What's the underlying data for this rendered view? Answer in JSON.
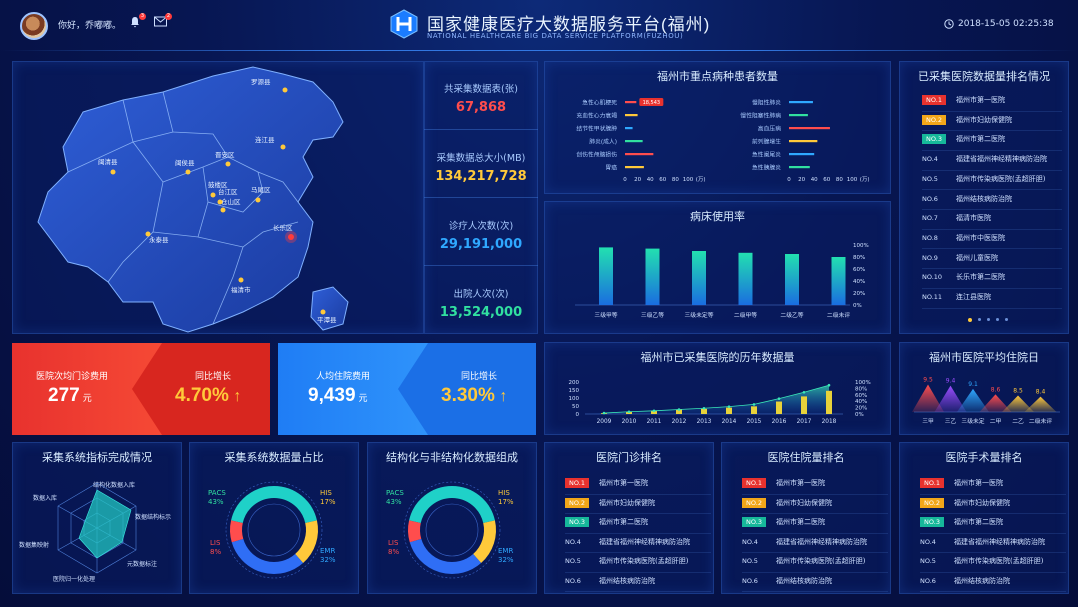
{
  "header": {
    "greeting": "你好，乔嘟嘟。",
    "title_cn": "国家健康医疗大数据服务平台(福州)",
    "title_en": "NATIONAL HEALTHCARE BIG DATA SERVICE PLATFORM(FUZHOU)",
    "datetime": "2018-15-05 02:25:38",
    "bell_count": "3",
    "mail_count": "2"
  },
  "map": {
    "districts": [
      {
        "label": "罗源县"
      },
      {
        "label": "连江县"
      },
      {
        "label": "闽清县"
      },
      {
        "label": "闽侯县"
      },
      {
        "label": "晋安区"
      },
      {
        "label": "鼓楼区"
      },
      {
        "label": "台江区"
      },
      {
        "label": "仓山区"
      },
      {
        "label": "马尾区"
      },
      {
        "label": "长乐区"
      },
      {
        "label": "永泰县"
      },
      {
        "label": "福清市"
      },
      {
        "label": "平潭县"
      }
    ]
  },
  "stats": [
    {
      "label": "共采集数据表(张)",
      "value": "67,868",
      "color": "#ff4d4d"
    },
    {
      "label": "采集数据总大小(MB)",
      "value": "134,217,728",
      "color": "#ffc93a"
    },
    {
      "label": "诊疗人次数(次)",
      "value": "29,191,000",
      "color": "#2fa8ff"
    },
    {
      "label": "出院人次(次)",
      "value": "13,524,000",
      "color": "#31e0a0"
    }
  ],
  "disease": {
    "title": "福州市重点病种患者数量",
    "left": [
      {
        "name": "急性心肌梗死",
        "value": 18,
        "color": "#ff4d4d",
        "tag": "18,543"
      },
      {
        "name": "充血性心力衰竭",
        "value": 20,
        "color": "#ffc93a"
      },
      {
        "name": "结节性甲状腺肿",
        "value": 12,
        "color": "#2fa8ff"
      },
      {
        "name": "肺炎(成人)",
        "value": 28,
        "color": "#31e0a0"
      },
      {
        "name": "创伤性颅脑损伤",
        "value": 45,
        "color": "#ff4d4d"
      },
      {
        "name": "胃癌",
        "value": 30,
        "color": "#ffc93a"
      }
    ],
    "right": [
      {
        "name": "慢阻性肺炎",
        "value": 38,
        "color": "#2fa8ff"
      },
      {
        "name": "慢性阻塞性肺病",
        "value": 30,
        "color": "#31e0a0"
      },
      {
        "name": "高血压病",
        "value": 65,
        "color": "#ff4d4d"
      },
      {
        "name": "前列腺增生",
        "value": 45,
        "color": "#ffc93a"
      },
      {
        "name": "急性阑尾炎",
        "value": 40,
        "color": "#2fa8ff"
      },
      {
        "name": "急性胰腺炎",
        "value": 33,
        "color": "#31e0a0"
      }
    ],
    "ticks": [
      "0",
      "20",
      "40",
      "60",
      "80",
      "100",
      "(万)"
    ]
  },
  "bed": {
    "title": "病床使用率",
    "yticks": [
      "100%",
      "80%",
      "60%",
      "40%",
      "20%",
      "0%"
    ]
  },
  "hospital_rank": {
    "title": "已采集医院数据量排名情况",
    "rows": [
      {
        "no": "NO.1",
        "name": "福州市第一医院"
      },
      {
        "no": "NO.2",
        "name": "福州市妇幼保健院"
      },
      {
        "no": "NO.3",
        "name": "福州市第二医院"
      },
      {
        "no": "NO.4",
        "name": "福建省福州神经精神病防治院"
      },
      {
        "no": "NO.5",
        "name": "福州市传染病医院(孟超肝胆)"
      },
      {
        "no": "NO.6",
        "name": "福州结核病防治院"
      },
      {
        "no": "NO.7",
        "name": "福清市医院"
      },
      {
        "no": "NO.8",
        "name": "福州市中医医院"
      },
      {
        "no": "NO.9",
        "name": "福州儿童医院"
      },
      {
        "no": "NO.10",
        "name": "长乐市第二医院"
      },
      {
        "no": "NO.11",
        "name": "连江县医院"
      }
    ]
  },
  "kpi": {
    "outpatient_label": "医院次均门诊费用",
    "outpatient_value": "277",
    "outpatient_unit": "元",
    "outpatient_growth_label": "同比增长",
    "outpatient_growth": "4.70%",
    "inpatient_label": "人均住院费用",
    "inpatient_value": "9,439",
    "inpatient_unit": "元",
    "inpatient_growth_label": "同比增长",
    "inpatient_growth": "3.30%"
  },
  "history": {
    "title": "福州市已采集医院的历年数据量",
    "left_ticks": [
      "200",
      "150",
      "100",
      "50",
      "0"
    ],
    "right_ticks": [
      "100%",
      "80%",
      "60%",
      "40%",
      "20%",
      "0%"
    ]
  },
  "stay": {
    "title": "福州市医院平均住院日",
    "values_text": [
      "9.5",
      "9.4",
      "9.1",
      "8.6",
      "8.5",
      "8.4"
    ]
  },
  "completion": {
    "title": "采集系统指标完成情况",
    "axes": [
      "结构化数据入库",
      "数据结构标示",
      "元数据标注",
      "医院归一化处理",
      "数据集映射",
      "数据入库"
    ]
  },
  "ratio": {
    "title": "采集系统数据量占比",
    "pacs": "PACS",
    "pacs_pct": "43%",
    "his": "HIS",
    "his_pct": "17%",
    "lis": "LIS",
    "lis_pct": "8%",
    "emr": "EMR",
    "emr_pct": "32%"
  },
  "structured": {
    "title": "结构化与非结构化数据组成",
    "pacs": "PACS",
    "pacs_pct": "43%",
    "his": "HIS",
    "his_pct": "17%",
    "lis": "LIS",
    "lis_pct": "8%",
    "emr": "EMR",
    "emr_pct": "32%"
  },
  "outpatient_rank": {
    "title": "医院门诊排名",
    "rows": [
      {
        "no": "NO.1",
        "name": "福州市第一医院"
      },
      {
        "no": "NO.2",
        "name": "福州市妇幼保健院"
      },
      {
        "no": "NO.3",
        "name": "福州市第二医院"
      },
      {
        "no": "NO.4",
        "name": "福建省福州神经精神病防治院"
      },
      {
        "no": "NO.5",
        "name": "福州市传染病医院(孟超肝胆)"
      },
      {
        "no": "NO.6",
        "name": "福州结核病防治院"
      }
    ]
  },
  "inpatient_rank": {
    "title": "医院住院量排名",
    "rows": [
      {
        "no": "NO.1",
        "name": "福州市第一医院"
      },
      {
        "no": "NO.2",
        "name": "福州市妇幼保健院"
      },
      {
        "no": "NO.3",
        "name": "福州市第二医院"
      },
      {
        "no": "NO.4",
        "name": "福建省福州神经精神病防治院"
      },
      {
        "no": "NO.5",
        "name": "福州市传染病医院(孟超肝胆)"
      },
      {
        "no": "NO.6",
        "name": "福州结核病防治院"
      }
    ]
  },
  "surgery_rank": {
    "title": "医院手术量排名",
    "rows": [
      {
        "no": "NO.1",
        "name": "福州市第一医院"
      },
      {
        "no": "NO.2",
        "name": "福州市妇幼保健院"
      },
      {
        "no": "NO.3",
        "name": "福州市第二医院"
      },
      {
        "no": "NO.4",
        "name": "福建省福州神经精神病防治院"
      },
      {
        "no": "NO.5",
        "name": "福州市传染病医院(孟超肝胆)"
      },
      {
        "no": "NO.6",
        "name": "福州结核病防治院"
      }
    ]
  },
  "chart_data": [
    {
      "type": "bar",
      "title": "病床使用率",
      "categories": [
        "三级甲等",
        "三级乙等",
        "三级未定等",
        "二级甲等",
        "二级乙等",
        "二级未评"
      ],
      "values": [
        96,
        94,
        90,
        87,
        85,
        80
      ],
      "ylim": [
        0,
        100
      ]
    },
    {
      "type": "bar",
      "title": "福州市已采集医院的历年数据量",
      "categories": [
        "2009",
        "2010",
        "2011",
        "2012",
        "2013",
        "2014",
        "2015",
        "2016",
        "2017",
        "2018"
      ],
      "series": [
        {
          "values": [
            5,
            15,
            22,
            28,
            32,
            40,
            48,
            78,
            110,
            145
          ]
        }
      ],
      "line_pct": [
        3,
        7,
        10,
        14,
        18,
        23,
        30,
        48,
        68,
        90
      ],
      "ylim": [
        0,
        200
      ]
    },
    {
      "type": "area",
      "title": "福州市医院平均住院日",
      "categories": [
        "三甲",
        "三乙",
        "三级未定",
        "二甲",
        "二乙",
        "二级未评"
      ],
      "values": [
        9.5,
        9.4,
        9.1,
        8.6,
        8.5,
        8.4
      ]
    },
    {
      "type": "pie",
      "title": "采集系统数据量占比",
      "categories": [
        "PACS",
        "HIS",
        "EMR",
        "LIS"
      ],
      "values": [
        43,
        17,
        32,
        8
      ]
    }
  ],
  "colors": {
    "red": "#ff4d4d",
    "yellow": "#ffc93a",
    "blue": "#2fa8ff",
    "green": "#31e0a0",
    "teal": "#1fd1c8"
  }
}
